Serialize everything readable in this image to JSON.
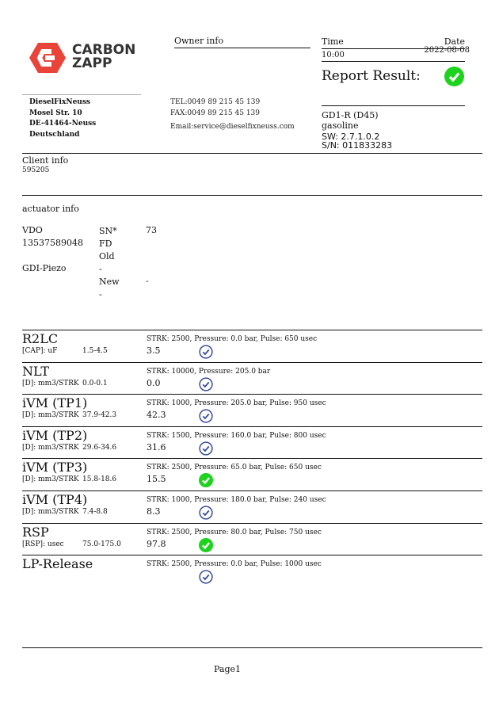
{
  "logo": {
    "line1": "CARBON",
    "line2": "ZAPP",
    "brand_color": "#e8443a"
  },
  "owner": {
    "heading": "Owner info",
    "name": "DieselFixNeuss",
    "street": "Mosel Str. 10",
    "city": "DE-41464-Neuss",
    "country": "Deutschland",
    "tel": "TEL:0049 89 215 45 139",
    "fax": "FAX:0049 89 215 45 139",
    "email": "Email:service@dieselfixneuss.com"
  },
  "report": {
    "time_label": "Time",
    "date_label": "Date",
    "time": "10:00",
    "date": "2022-08-08",
    "result_label": "Report Result:",
    "result_icon": "check-circle-green"
  },
  "device": {
    "model": "GD1-R (D45)",
    "fuel": "gasoline",
    "sw": "SW: 2.7.1.0.2",
    "sn": "S/N: 011833283"
  },
  "client": {
    "heading": "Client info",
    "id": "595205"
  },
  "actuator": {
    "heading": "actuator info",
    "maker": "VDO",
    "part": "13537589048",
    "type": "GDI-Piezo",
    "sn_label": "SN*",
    "sn_value": "73",
    "fd_label": "FD",
    "old_label": "Old",
    "old_value": "-",
    "new_label": "New",
    "new_value": "-",
    "new_value2": "-"
  },
  "tests": [
    {
      "name": "R2LC",
      "unit": "[CAP]: uF",
      "range": "1.5-4.5",
      "value": "3.5",
      "params": "STRK: 2500, Pressure: 0.0 bar, Pulse: 650 usec",
      "status": "check-circle-outline"
    },
    {
      "name": "NLT",
      "unit": "[D]: mm3/STRK",
      "range": "0.0-0.1",
      "value": "0.0",
      "params": "STRK: 10000, Pressure: 205.0 bar",
      "status": "check-circle-outline"
    },
    {
      "name": "iVM (TP1)",
      "unit": "[D]: mm3/STRK",
      "range": "37.9-42.3",
      "value": "42.3",
      "params": "STRK: 1000, Pressure: 205.0 bar, Pulse: 950 usec",
      "status": "check-circle-outline"
    },
    {
      "name": "iVM (TP2)",
      "unit": "[D]: mm3/STRK",
      "range": "29.6-34.6",
      "value": "31.6",
      "params": "STRK: 1500, Pressure: 160.0 bar, Pulse: 800 usec",
      "status": "check-circle-outline"
    },
    {
      "name": "iVM (TP3)",
      "unit": "[D]: mm3/STRK",
      "range": "15.8-18.6",
      "value": "15.5",
      "params": "STRK: 2500, Pressure: 65.0 bar, Pulse: 650 usec",
      "status": "check-circle-green"
    },
    {
      "name": "iVM (TP4)",
      "unit": "[D]: mm3/STRK",
      "range": "7.4-8.8",
      "value": "8.3",
      "params": "STRK: 1000, Pressure: 180.0 bar, Pulse: 240 usec",
      "status": "check-circle-outline"
    },
    {
      "name": "RSP",
      "unit": "[RSP]: usec",
      "range": "75.0-175.0",
      "value": "97.8",
      "params": "STRK: 2500, Pressure: 80.0 bar, Pulse: 750 usec",
      "status": "check-circle-green"
    },
    {
      "name": "LP-Release",
      "unit": "",
      "range": "",
      "value": "",
      "params": "STRK: 2500, Pressure: 0.0 bar, Pulse: 1000 usec",
      "status": "check-circle-outline"
    }
  ],
  "footer": {
    "page": "Page1"
  }
}
